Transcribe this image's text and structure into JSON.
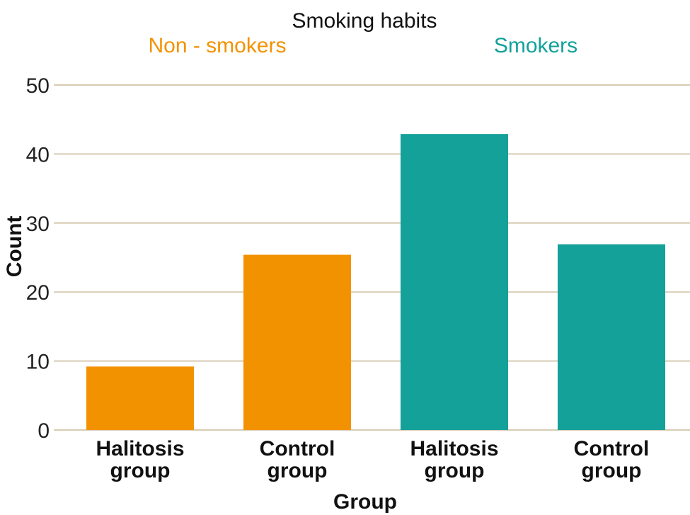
{
  "chart_data": {
    "type": "bar",
    "legend_title": "Smoking habits",
    "legend_placement": "top-center",
    "xlabel": "Group",
    "ylabel": "Count",
    "ylim": [
      0,
      50
    ],
    "yticks": [
      0,
      10,
      20,
      30,
      40,
      50
    ],
    "grid": true,
    "categories": [
      [
        "Halitosis",
        "group"
      ],
      [
        "Control",
        "group"
      ],
      [
        "Halitosis",
        "group"
      ],
      [
        "Control",
        "group"
      ]
    ],
    "series": [
      {
        "name": "Non - smokers",
        "color": "#F39200",
        "values": [
          9.2,
          25.4,
          null,
          null
        ]
      },
      {
        "name": "Smokers",
        "color": "#13A19A",
        "values": [
          null,
          null,
          42.9,
          26.9
        ]
      }
    ]
  }
}
